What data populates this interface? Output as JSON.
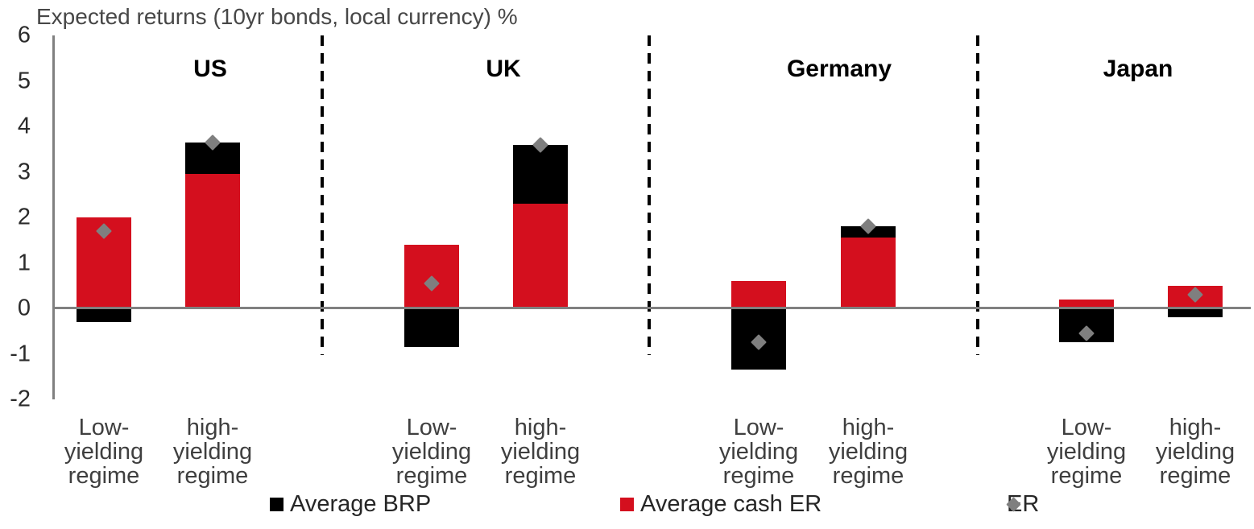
{
  "chart_data": {
    "type": "bar",
    "title": "Expected returns (10yr bonds, local currency) %",
    "xlabel": "",
    "ylabel": "Expected returns (10yr bonds, local currency) %",
    "ylim": [
      -2,
      6
    ],
    "yticks": [
      6,
      5,
      4,
      3,
      2,
      1,
      0,
      -1,
      -2
    ],
    "grid": false,
    "legend_position": "bottom",
    "stacked": true,
    "series_names": [
      "Average BRP",
      "Average cash ER",
      "ER"
    ],
    "groups": [
      {
        "name": "US",
        "bars": [
          {
            "category": "Low-yielding regime",
            "average_brp": -0.3,
            "average_cash_er": 2.0,
            "er": 1.7
          },
          {
            "category": "high-yielding regime",
            "average_brp": 0.7,
            "average_cash_er": 2.95,
            "er": 3.65
          }
        ]
      },
      {
        "name": "UK",
        "bars": [
          {
            "category": "Low-yielding regime",
            "average_brp": -0.85,
            "average_cash_er": 1.4,
            "er": 0.55
          },
          {
            "category": "high-yielding regime",
            "average_brp": 1.3,
            "average_cash_er": 2.3,
            "er": 3.6
          }
        ]
      },
      {
        "name": "Germany",
        "bars": [
          {
            "category": "Low-yielding regime",
            "average_brp": -1.35,
            "average_cash_er": 0.6,
            "er": -0.75
          },
          {
            "category": "high-yielding regime",
            "average_brp": 0.25,
            "average_cash_er": 1.55,
            "er": 1.8
          }
        ]
      },
      {
        "name": "Japan",
        "bars": [
          {
            "category": "Low-yielding regime",
            "average_brp": -0.75,
            "average_cash_er": 0.2,
            "er": -0.55
          },
          {
            "category": "high-yielding regime",
            "average_brp": -0.2,
            "average_cash_er": 0.5,
            "er": 0.3
          }
        ]
      }
    ],
    "legend": [
      {
        "label": "Average BRP",
        "marker": "square",
        "color": "#000000"
      },
      {
        "label": "Average cash ER",
        "marker": "square",
        "color": "#d40f1e"
      },
      {
        "label": "ER",
        "marker": "diamond",
        "color": "#7f7f7f"
      }
    ],
    "colors": {
      "brp": "#000000",
      "cash_er": "#d40f1e",
      "er_marker": "#7f7f7f",
      "axis": "#808080",
      "separator": "#000000"
    }
  }
}
